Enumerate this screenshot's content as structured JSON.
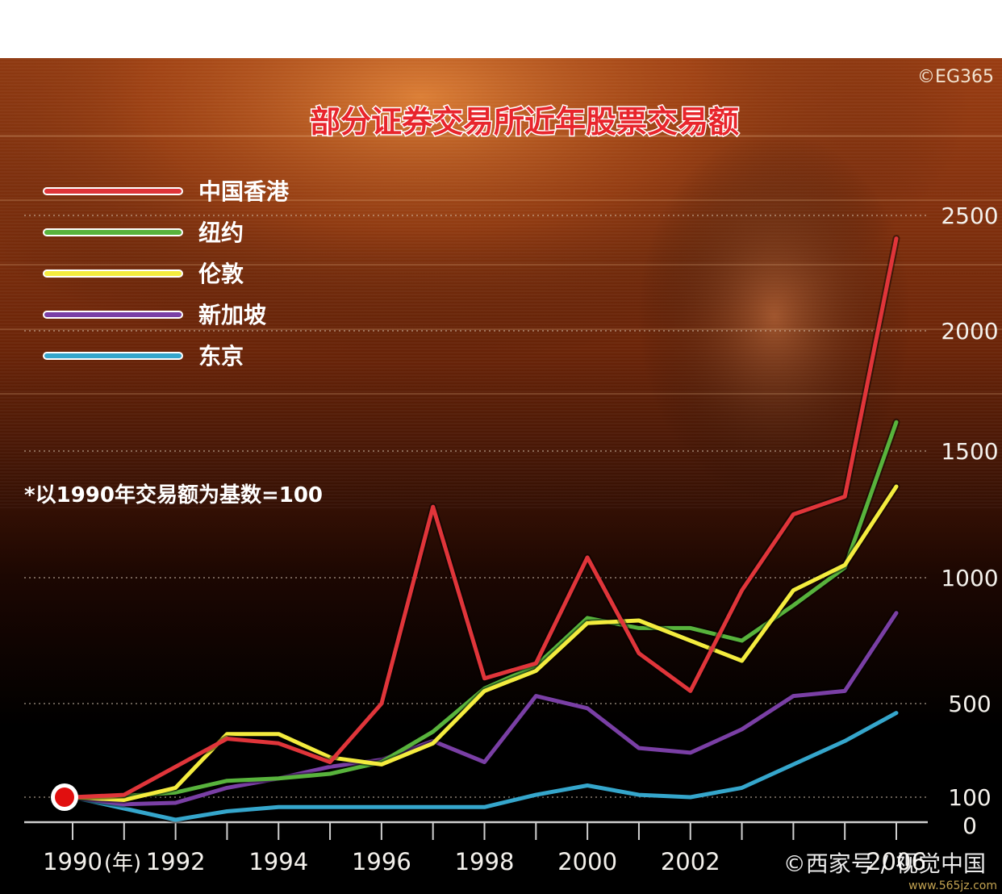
{
  "header": {
    "copyright": "©EG365",
    "footnote": "*以1990年交易额为基数=100",
    "watermark": "©西家号 / 视觉中国",
    "site": "www.565jz.com"
  },
  "colors": {
    "hongkong": "#e0353a",
    "newyork": "#58b33c",
    "london": "#f4ec3e",
    "singapore": "#7a3fa5",
    "tokyo": "#35a6cc",
    "title": "#e8252c",
    "origin_dot": "#e10f0f"
  },
  "chart_data": {
    "type": "line",
    "title": "部分证券交易所近年股票交易额",
    "xlabel": "",
    "ylabel": "",
    "x_unit_label": "(年)",
    "x": [
      1990,
      1991,
      1992,
      1993,
      1994,
      1995,
      1996,
      1997,
      1998,
      1999,
      2000,
      2001,
      2002,
      2003,
      2004,
      2005,
      2006
    ],
    "x_tick_labels": [
      "1990",
      "1992",
      "1994",
      "1996",
      "1998",
      "2000",
      "2002",
      "2006"
    ],
    "x_tick_values": [
      1990,
      1992,
      1994,
      1996,
      1998,
      2000,
      2002,
      2006
    ],
    "y_tick_labels": [
      "0",
      "100",
      "500",
      "1000",
      "1500",
      "2000",
      "2500"
    ],
    "y_tick_values": [
      0,
      100,
      500,
      1000,
      1500,
      2000,
      2500
    ],
    "ylim": [
      0,
      2500
    ],
    "xlim": [
      1990,
      2006
    ],
    "grid": "dotted horizontal",
    "legend_position": "top-left",
    "series": [
      {
        "name": "中国香港",
        "color": "#e0353a",
        "values": [
          100,
          110,
          230,
          350,
          330,
          250,
          500,
          1280,
          600,
          660,
          1080,
          700,
          550,
          950,
          1250,
          1320,
          2400
        ]
      },
      {
        "name": "纽约",
        "color": "#58b33c",
        "values": [
          100,
          105,
          120,
          170,
          180,
          200,
          250,
          380,
          560,
          650,
          840,
          800,
          800,
          750,
          890,
          1040,
          1620
        ]
      },
      {
        "name": "伦敦",
        "color": "#f4ec3e",
        "values": [
          100,
          90,
          140,
          370,
          370,
          270,
          240,
          330,
          550,
          630,
          820,
          830,
          750,
          670,
          950,
          1050,
          1360
        ]
      },
      {
        "name": "新加坡",
        "color": "#7a3fa5",
        "values": [
          100,
          75,
          80,
          140,
          180,
          230,
          260,
          340,
          250,
          530,
          480,
          310,
          290,
          390,
          530,
          550,
          860
        ]
      },
      {
        "name": "东京",
        "color": "#35a6cc",
        "values": [
          100,
          60,
          20,
          50,
          65,
          65,
          65,
          65,
          65,
          110,
          150,
          110,
          100,
          140,
          240,
          340,
          460
        ]
      }
    ]
  }
}
